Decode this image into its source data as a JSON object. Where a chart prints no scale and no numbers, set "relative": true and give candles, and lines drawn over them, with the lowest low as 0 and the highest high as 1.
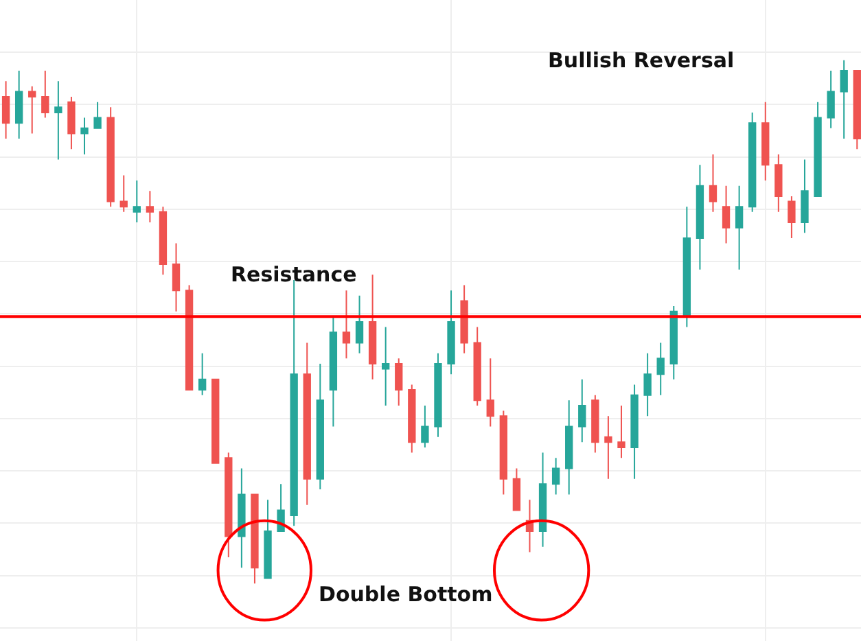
{
  "chart_data": {
    "type": "candlestick",
    "relative": true,
    "grid": true,
    "categories": [
      null,
      null,
      null,
      null,
      null,
      null,
      null,
      null,
      null,
      null,
      null,
      null,
      null,
      null,
      null,
      null,
      null,
      null,
      null,
      null,
      null,
      null,
      null,
      null,
      null,
      null,
      null,
      null,
      null,
      null,
      null,
      null,
      null,
      null,
      null,
      null,
      null,
      null,
      null,
      null,
      null,
      null,
      null,
      null,
      null,
      null,
      null,
      null,
      null,
      null,
      null,
      null,
      null,
      null,
      null,
      null,
      null,
      null,
      null,
      null,
      null,
      null,
      null,
      null,
      null,
      null
    ],
    "ohlc": [
      [
        0.93,
        0.96,
        0.85,
        0.88
      ],
      [
        0.88,
        0.98,
        0.85,
        0.94
      ],
      [
        0.94,
        0.95,
        0.86,
        0.93
      ],
      [
        0.93,
        0.98,
        0.89,
        0.9
      ],
      [
        0.9,
        0.96,
        0.81,
        0.91
      ],
      [
        0.92,
        0.93,
        0.83,
        0.86
      ],
      [
        0.86,
        0.89,
        0.82,
        0.87
      ],
      [
        0.87,
        0.92,
        0.87,
        0.89
      ],
      [
        0.89,
        0.91,
        0.72,
        0.73
      ],
      [
        0.73,
        0.78,
        0.71,
        0.72
      ],
      [
        0.71,
        0.77,
        0.69,
        0.72
      ],
      [
        0.72,
        0.75,
        0.69,
        0.71
      ],
      [
        0.71,
        0.72,
        0.59,
        0.61
      ],
      [
        0.61,
        0.65,
        0.52,
        0.56
      ],
      [
        0.56,
        0.57,
        0.37,
        0.37
      ],
      [
        0.37,
        0.44,
        0.36,
        0.39
      ],
      [
        0.39,
        0.39,
        0.23,
        0.23
      ],
      [
        0.24,
        0.25,
        0.05,
        0.09
      ],
      [
        0.09,
        0.22,
        0.03,
        0.17
      ],
      [
        0.17,
        0.17,
        0.0,
        0.03
      ],
      [
        0.01,
        0.16,
        0.01,
        0.1
      ],
      [
        0.1,
        0.19,
        0.1,
        0.14
      ],
      [
        0.13,
        0.58,
        0.11,
        0.4
      ],
      [
        0.4,
        0.46,
        0.15,
        0.2
      ],
      [
        0.2,
        0.42,
        0.18,
        0.35
      ],
      [
        0.37,
        0.51,
        0.3,
        0.48
      ],
      [
        0.48,
        0.56,
        0.43,
        0.46
      ],
      [
        0.46,
        0.55,
        0.44,
        0.5
      ],
      [
        0.5,
        0.59,
        0.39,
        0.42
      ],
      [
        0.41,
        0.49,
        0.34,
        0.42
      ],
      [
        0.42,
        0.43,
        0.34,
        0.37
      ],
      [
        0.37,
        0.38,
        0.25,
        0.27
      ],
      [
        0.27,
        0.34,
        0.26,
        0.3
      ],
      [
        0.3,
        0.44,
        0.28,
        0.42
      ],
      [
        0.42,
        0.56,
        0.4,
        0.5
      ],
      [
        0.54,
        0.57,
        0.44,
        0.46
      ],
      [
        0.46,
        0.49,
        0.34,
        0.35
      ],
      [
        0.35,
        0.43,
        0.3,
        0.32
      ],
      [
        0.32,
        0.33,
        0.17,
        0.2
      ],
      [
        0.2,
        0.22,
        0.14,
        0.14
      ],
      [
        0.12,
        0.16,
        0.06,
        0.1
      ],
      [
        0.1,
        0.25,
        0.07,
        0.19
      ],
      [
        0.19,
        0.24,
        0.17,
        0.22
      ],
      [
        0.22,
        0.35,
        0.17,
        0.3
      ],
      [
        0.3,
        0.39,
        0.27,
        0.34
      ],
      [
        0.35,
        0.36,
        0.25,
        0.27
      ],
      [
        0.28,
        0.32,
        0.2,
        0.27
      ],
      [
        0.27,
        0.34,
        0.24,
        0.26
      ],
      [
        0.26,
        0.38,
        0.2,
        0.36
      ],
      [
        0.36,
        0.44,
        0.32,
        0.4
      ],
      [
        0.4,
        0.46,
        0.36,
        0.43
      ],
      [
        0.42,
        0.53,
        0.39,
        0.52
      ],
      [
        0.51,
        0.72,
        0.49,
        0.66
      ],
      [
        0.66,
        0.8,
        0.6,
        0.76
      ],
      [
        0.76,
        0.82,
        0.71,
        0.73
      ],
      [
        0.72,
        0.76,
        0.65,
        0.68
      ],
      [
        0.68,
        0.76,
        0.6,
        0.72
      ],
      [
        0.72,
        0.9,
        0.71,
        0.88
      ],
      [
        0.88,
        0.92,
        0.77,
        0.8
      ],
      [
        0.8,
        0.82,
        0.71,
        0.74
      ],
      [
        0.73,
        0.74,
        0.66,
        0.69
      ],
      [
        0.69,
        0.81,
        0.67,
        0.75
      ],
      [
        0.74,
        0.92,
        0.74,
        0.89
      ],
      [
        0.89,
        0.98,
        0.87,
        0.94
      ],
      [
        0.94,
        1.0,
        0.85,
        0.98
      ],
      [
        0.98,
        0.98,
        0.83,
        0.85
      ]
    ],
    "colors": [
      "#ef5350",
      "#26a69a",
      "#ef5350",
      "#ef5350",
      "#26a69a",
      "#ef5350",
      "#26a69a",
      "#26a69a",
      "#ef5350",
      "#ef5350",
      "#26a69a",
      "#ef5350",
      "#ef5350",
      "#ef5350",
      "#ef5350",
      "#26a69a",
      "#ef5350",
      "#ef5350",
      "#26a69a",
      "#ef5350",
      "#26a69a",
      "#26a69a",
      "#26a69a",
      "#ef5350",
      "#26a69a",
      "#26a69a",
      "#ef5350",
      "#26a69a",
      "#ef5350",
      "#26a69a",
      "#ef5350",
      "#ef5350",
      "#26a69a",
      "#26a69a",
      "#26a69a",
      "#ef5350",
      "#ef5350",
      "#ef5350",
      "#ef5350",
      "#ef5350",
      "#ef5350",
      "#26a69a",
      "#26a69a",
      "#26a69a",
      "#26a69a",
      "#ef5350",
      "#ef5350",
      "#ef5350",
      "#26a69a",
      "#26a69a",
      "#26a69a",
      "#26a69a",
      "#26a69a",
      "#26a69a",
      "#ef5350",
      "#ef5350",
      "#26a69a",
      "#26a69a",
      "#ef5350",
      "#ef5350",
      "#ef5350",
      "#26a69a",
      "#26a69a",
      "#26a69a",
      "#26a69a",
      "#ef5350"
    ],
    "ref_lines": [
      {
        "axis": "y",
        "value": 0.51,
        "label": "Resistance",
        "color": "#ff0000"
      }
    ],
    "annotations": [
      "Bullish Reversal",
      "Double Bottom"
    ]
  }
}
